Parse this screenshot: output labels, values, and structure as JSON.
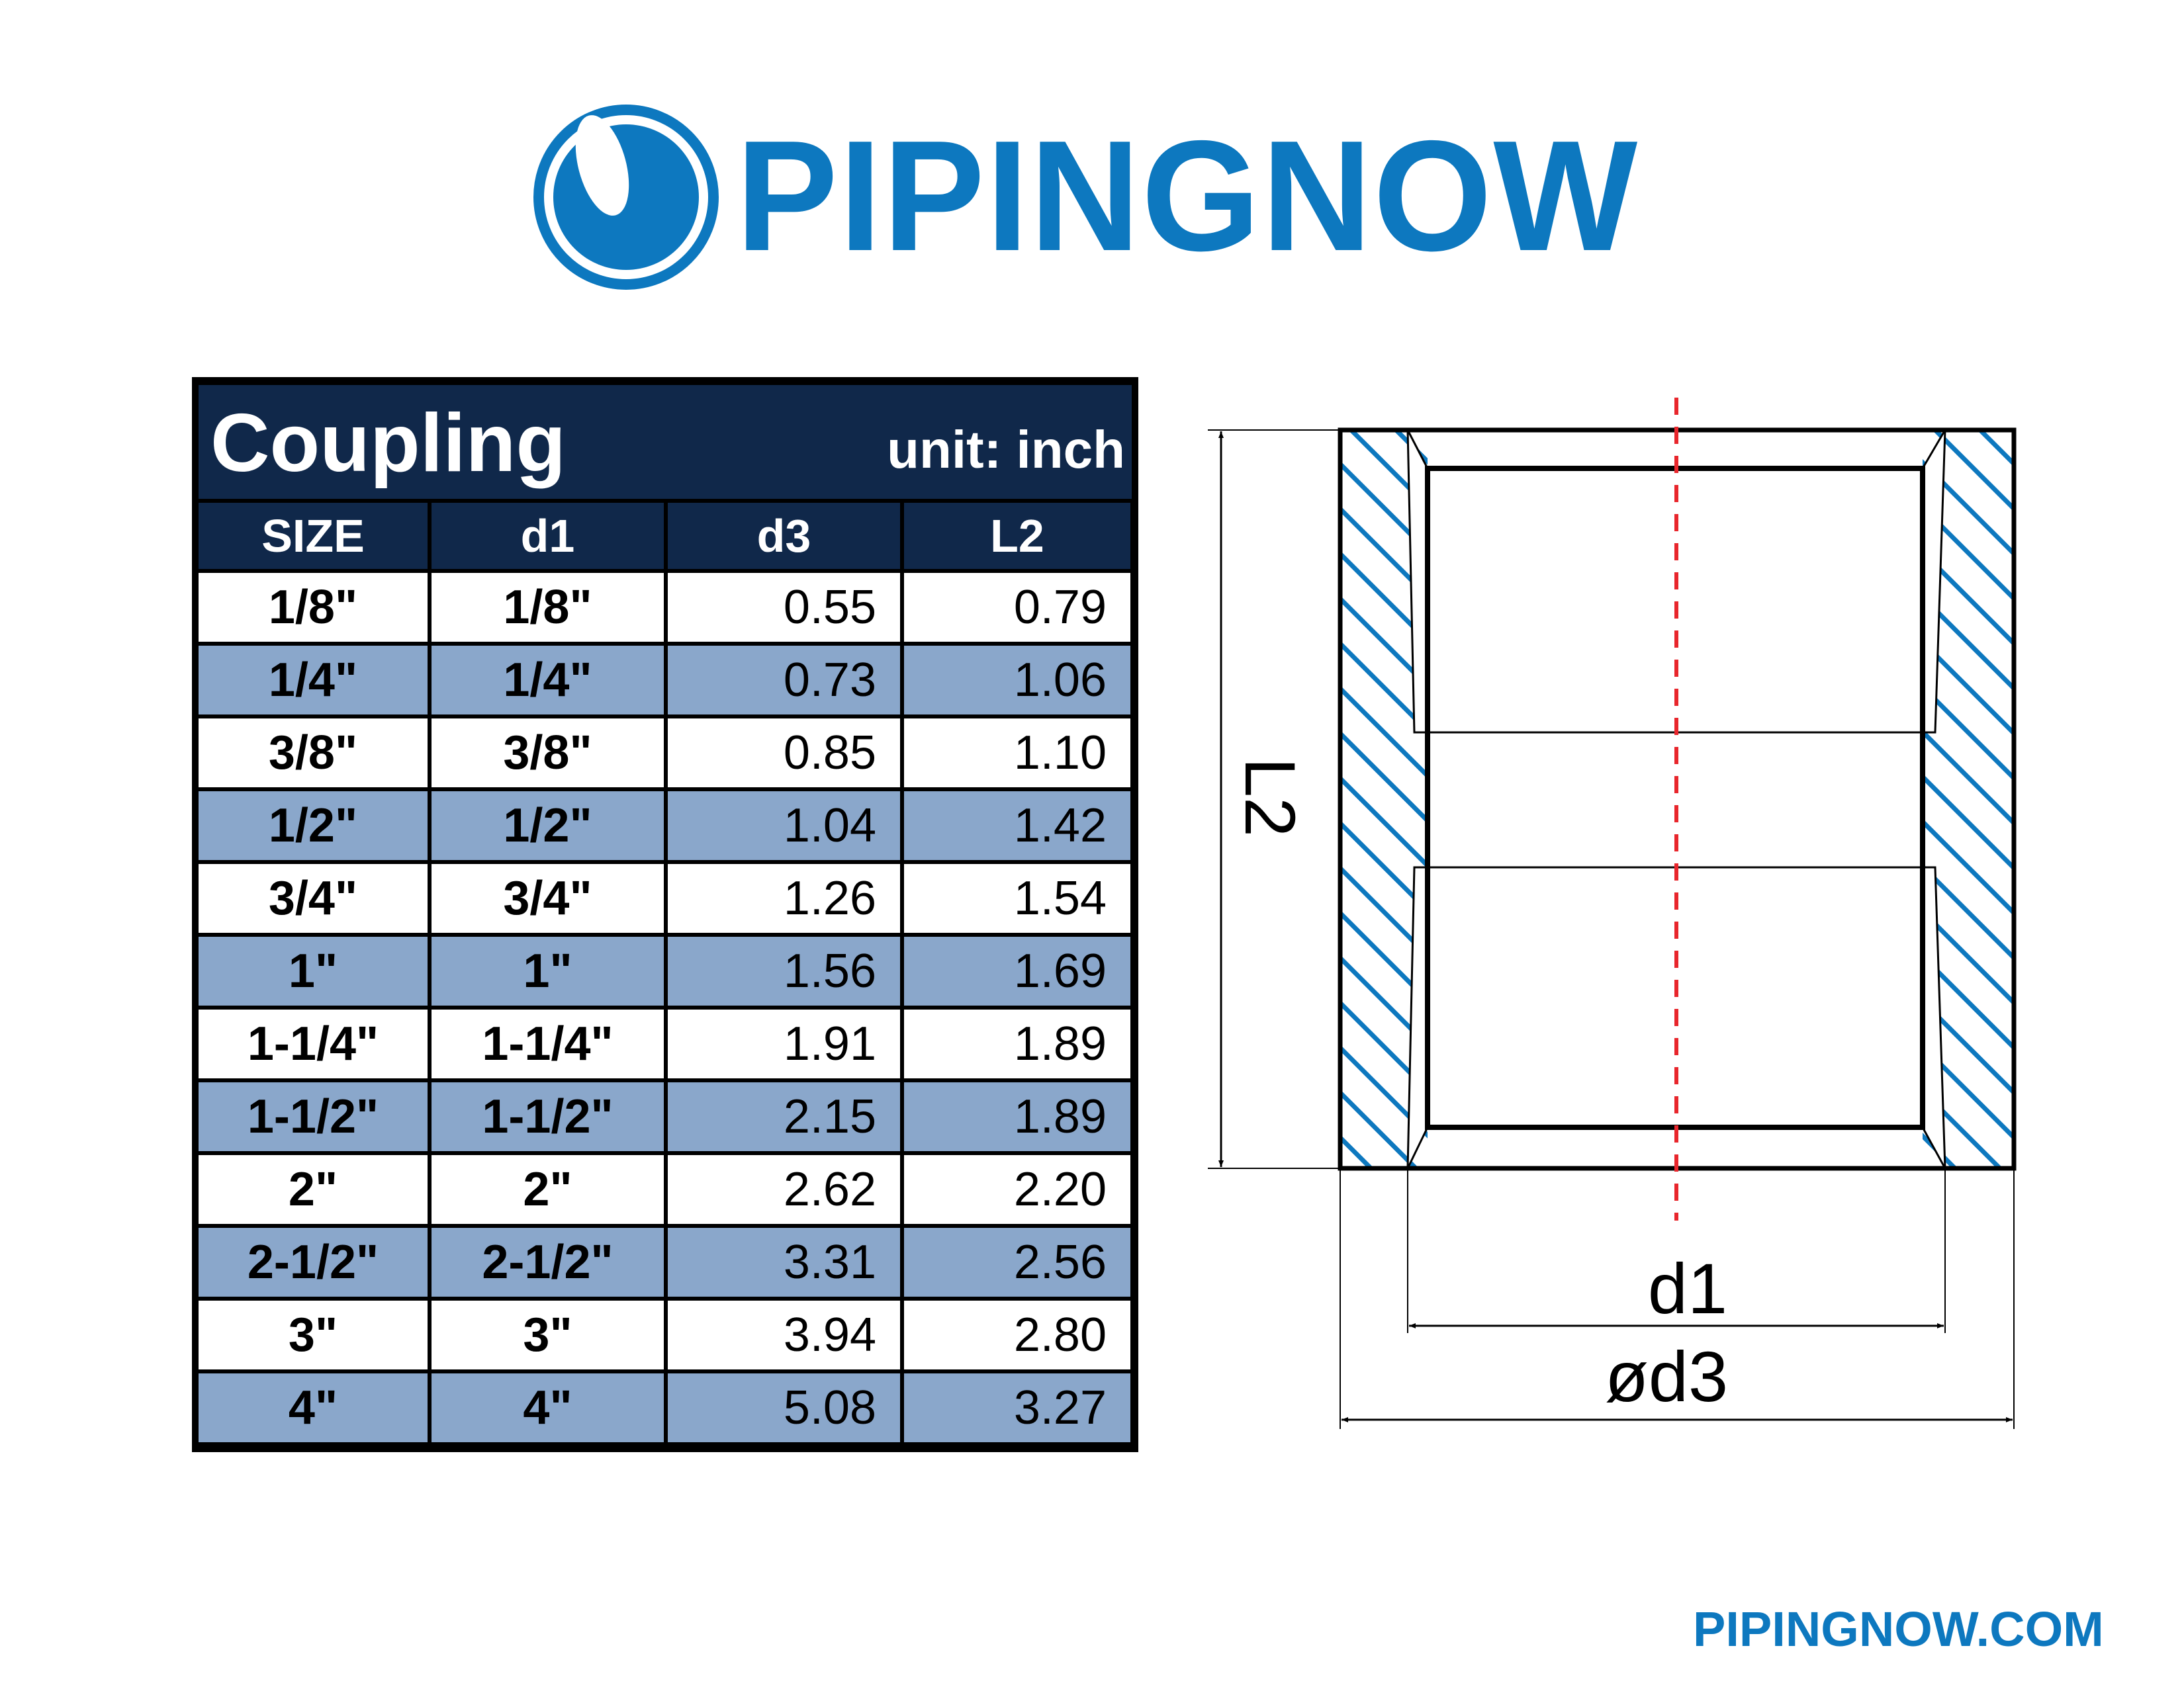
{
  "brand": {
    "name": "PIPINGNOW",
    "website": "PIPINGNOW.COM",
    "color": "#0d78bf"
  },
  "table": {
    "title": "Coupling",
    "unit": "unit: inch",
    "headers": [
      "SIZE",
      "d1",
      "d3",
      "L2"
    ],
    "rows": [
      [
        "1/8\"",
        "1/8\"",
        "0.55",
        "0.79"
      ],
      [
        "1/4\"",
        "1/4\"",
        "0.73",
        "1.06"
      ],
      [
        "3/8\"",
        "3/8\"",
        "0.85",
        "1.10"
      ],
      [
        "1/2\"",
        "1/2\"",
        "1.04",
        "1.42"
      ],
      [
        "3/4\"",
        "3/4\"",
        "1.26",
        "1.54"
      ],
      [
        "1\"",
        "1\"",
        "1.56",
        "1.69"
      ],
      [
        "1-1/4\"",
        "1-1/4\"",
        "1.91",
        "1.89"
      ],
      [
        "1-1/2\"",
        "1-1/2\"",
        "2.15",
        "1.89"
      ],
      [
        "2\"",
        "2\"",
        "2.62",
        "2.20"
      ],
      [
        "2-1/2\"",
        "2-1/2\"",
        "3.31",
        "2.56"
      ],
      [
        "3\"",
        "3\"",
        "3.94",
        "2.80"
      ],
      [
        "4\"",
        "4\"",
        "5.08",
        "3.27"
      ]
    ],
    "header_color": "#10284a",
    "stripe_color": "#8aa7cb"
  },
  "drawing": {
    "labels": {
      "length": "L2",
      "inner_diameter": "d1",
      "outer_diameter": "ød3"
    },
    "hatch_color": "#0d78bf",
    "centerline_color": "#e8262c"
  }
}
